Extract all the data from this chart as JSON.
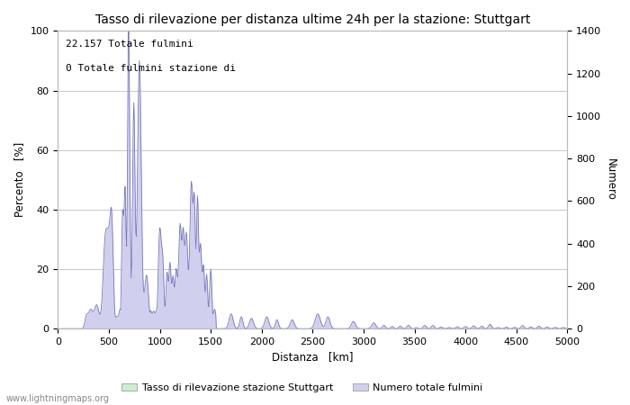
{
  "title": "Tasso di rilevazione per distanza ultime 24h per la stazione: Stuttgart",
  "xlabel": "Distanza   [km]",
  "ylabel_left": "Percento   [%]",
  "ylabel_right": "Numero",
  "annotation_line1": "22.157 Totale fulmini",
  "annotation_line2": "0 Totale fulmini stazione di",
  "legend_label1": "Tasso di rilevazione stazione Stuttgart",
  "legend_label2": "Numero totale fulmini",
  "watermark": "www.lightningmaps.org",
  "xlim": [
    0,
    5000
  ],
  "ylim_left": [
    0,
    100
  ],
  "ylim_right": [
    0,
    1400
  ],
  "xticks": [
    0,
    500,
    1000,
    1500,
    2000,
    2500,
    3000,
    3500,
    4000,
    4500,
    5000
  ],
  "yticks_left": [
    0,
    20,
    40,
    60,
    80,
    100
  ],
  "yticks_right": [
    0,
    200,
    400,
    600,
    800,
    1000,
    1200,
    1400
  ],
  "bg_color": "#ffffff",
  "plot_bg_color": "#ffffff",
  "grid_color": "#c8c8c8",
  "line_color": "#7777bb",
  "fill_color_blue": "#d0d0ee",
  "fill_color_green": "#cceecc",
  "title_fontsize": 10,
  "label_fontsize": 8.5,
  "tick_fontsize": 8,
  "figsize": [
    7.0,
    4.5
  ],
  "dpi": 100
}
